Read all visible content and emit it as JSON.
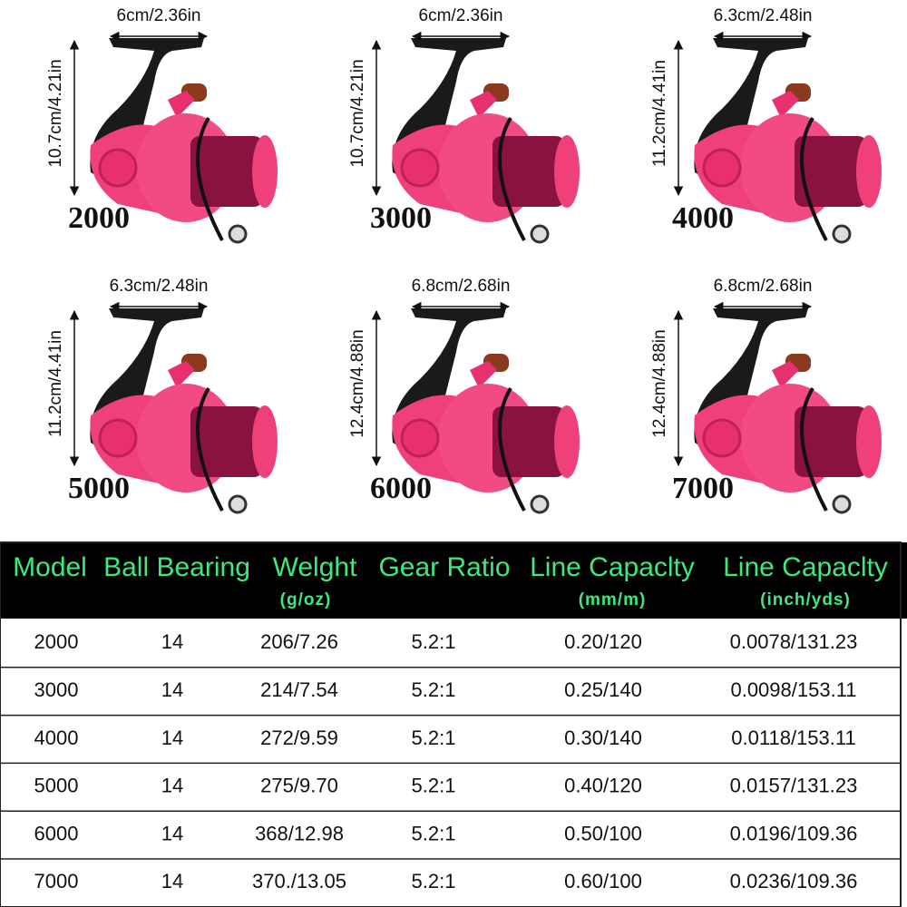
{
  "reels": [
    {
      "width": "6cm/2.36in",
      "height": "10.7cm/4.21in",
      "model": "2000"
    },
    {
      "width": "6cm/2.36in",
      "height": "10.7cm/4.21in",
      "model": "3000"
    },
    {
      "width": "6.3cm/2.48in",
      "height": "11.2cm/4.41in",
      "model": "4000"
    },
    {
      "width": "6.3cm/2.48in",
      "height": "11.2cm/4.41in",
      "model": "5000"
    },
    {
      "width": "6.8cm/2.68in",
      "height": "12.4cm/4.88in",
      "model": "6000"
    },
    {
      "width": "6.8cm/2.68in",
      "height": "12.4cm/4.88in",
      "model": "7000"
    }
  ],
  "table": {
    "header": [
      {
        "label": "Model"
      },
      {
        "label": "Ball Bearing"
      },
      {
        "label": "Welght",
        "unit": "(g/oz)"
      },
      {
        "label": "Gear Ratio"
      },
      {
        "label": "Line Capaclty",
        "unit": "(mm/m)"
      },
      {
        "label": "Line Capaclty",
        "unit": "(inch/yds)"
      }
    ],
    "rows": [
      [
        "2000",
        "14",
        "206/7.26",
        "5.2:1",
        "0.20/120",
        "0.0078/131.23"
      ],
      [
        "3000",
        "14",
        "214/7.54",
        "5.2:1",
        "0.25/140",
        "0.0098/153.11"
      ],
      [
        "4000",
        "14",
        "272/9.59",
        "5.2:1",
        "0.30/140",
        "0.0118/153.11"
      ],
      [
        "5000",
        "14",
        "275/9.70",
        "5.2:1",
        "0.40/120",
        "0.0157/131.23"
      ],
      [
        "6000",
        "14",
        "368/12.98",
        "5.2:1",
        "0.50/100",
        "0.0196/109.36"
      ],
      [
        "7000",
        "14",
        "370./13.05",
        "5.2:1",
        "0.60/100",
        "0.0236/109.36"
      ]
    ]
  }
}
